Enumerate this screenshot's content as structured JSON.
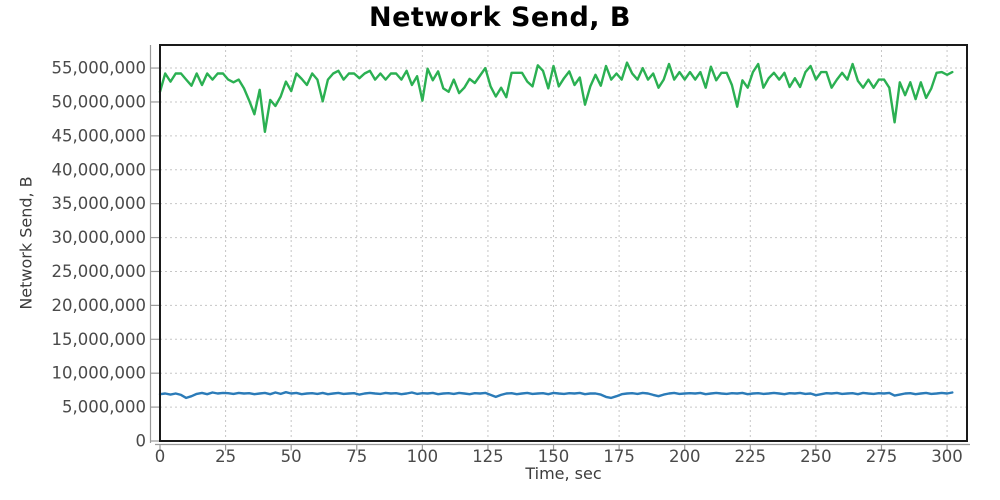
{
  "chart": {
    "title": "Network Send, B",
    "xlabel": "Time, sec",
    "ylabel": "Network Send, B"
  },
  "colors": {
    "series_high": "#2bb052",
    "series_low": "#2b7bb8",
    "grid": "#c6c6c6",
    "plot_border": "#1a1a1a",
    "axis_line": "#9a9a9a",
    "tick_label": "#4a4a4a"
  },
  "chart_data": {
    "type": "line",
    "title": "Network Send, B",
    "xlabel": "Time, sec",
    "ylabel": "Network Send, B",
    "grid": true,
    "legend": "none",
    "xlim": [
      0,
      307.6
    ],
    "ylim": [
      0,
      58400000
    ],
    "x_ticks": [
      0,
      25,
      50,
      75,
      100,
      125,
      150,
      175,
      200,
      225,
      250,
      275,
      300
    ],
    "y_ticks": [
      0,
      5000000,
      10000000,
      15000000,
      20000000,
      25000000,
      30000000,
      35000000,
      40000000,
      45000000,
      50000000,
      55000000
    ],
    "value_scale": 1000000,
    "x": [
      0,
      2,
      4,
      6,
      8,
      10,
      12,
      14,
      16,
      18,
      20,
      22,
      24,
      26,
      28,
      30,
      32,
      34,
      36,
      38,
      40,
      42,
      44,
      46,
      48,
      50,
      52,
      54,
      56,
      58,
      60,
      62,
      64,
      66,
      68,
      70,
      72,
      74,
      76,
      78,
      80,
      82,
      84,
      86,
      88,
      90,
      92,
      94,
      96,
      98,
      100,
      102,
      104,
      106,
      108,
      110,
      112,
      114,
      116,
      118,
      120,
      122,
      124,
      126,
      128,
      130,
      132,
      134,
      136,
      138,
      140,
      142,
      144,
      146,
      148,
      150,
      152,
      154,
      156,
      158,
      160,
      162,
      164,
      166,
      168,
      170,
      172,
      174,
      176,
      178,
      180,
      182,
      184,
      186,
      188,
      190,
      192,
      194,
      196,
      198,
      200,
      202,
      204,
      206,
      208,
      210,
      212,
      214,
      216,
      218,
      220,
      222,
      224,
      226,
      228,
      230,
      232,
      234,
      236,
      238,
      240,
      242,
      244,
      246,
      248,
      250,
      252,
      254,
      256,
      258,
      260,
      262,
      264,
      266,
      268,
      270,
      272,
      274,
      276,
      278,
      280,
      282,
      284,
      286,
      288,
      290,
      292,
      294,
      296,
      298,
      300,
      302
    ],
    "series": [
      {
        "name": "series-high-green",
        "color": "#2bb052",
        "values_millions": [
          51.5,
          54.2,
          53.0,
          54.2,
          54.2,
          53.3,
          52.4,
          54.2,
          52.5,
          54.2,
          53.3,
          54.2,
          54.2,
          53.3,
          52.9,
          53.3,
          52.0,
          50.2,
          48.2,
          51.8,
          45.6,
          50.3,
          49.4,
          50.8,
          53.0,
          51.6,
          54.2,
          53.4,
          52.5,
          54.2,
          53.3,
          50.1,
          53.3,
          54.2,
          54.6,
          53.3,
          54.2,
          54.2,
          53.5,
          54.2,
          54.6,
          53.3,
          54.2,
          53.3,
          54.2,
          54.2,
          53.3,
          54.6,
          52.5,
          53.8,
          50.2,
          54.9,
          53.2,
          54.5,
          52.0,
          51.5,
          53.3,
          51.3,
          52.1,
          53.4,
          52.8,
          53.9,
          55.0,
          52.3,
          50.8,
          52.1,
          50.7,
          54.3,
          54.3,
          54.3,
          53.0,
          52.3,
          55.4,
          54.6,
          52.0,
          55.3,
          52.3,
          53.5,
          54.5,
          52.5,
          53.6,
          49.6,
          52.3,
          54.0,
          52.4,
          55.3,
          53.3,
          54.2,
          53.3,
          55.8,
          54.2,
          53.3,
          55.0,
          53.3,
          54.2,
          52.1,
          53.3,
          55.6,
          53.3,
          54.4,
          53.3,
          54.4,
          53.3,
          54.4,
          52.1,
          55.2,
          53.2,
          54.3,
          54.3,
          52.5,
          49.3,
          53.2,
          52.1,
          54.4,
          55.6,
          52.1,
          53.5,
          54.3,
          53.3,
          54.3,
          52.2,
          53.5,
          52.2,
          54.4,
          55.3,
          53.3,
          54.4,
          54.4,
          52.1,
          53.3,
          54.3,
          53.3,
          55.6,
          53.1,
          52.1,
          53.3,
          52.1,
          53.3,
          53.3,
          52.1,
          47.0,
          52.9,
          51.0,
          52.9,
          50.4,
          52.9,
          50.6,
          52.0,
          54.3,
          54.4,
          54.0,
          54.4
        ]
      },
      {
        "name": "series-low-blue",
        "color": "#2b7bb8",
        "values_millions": [
          6.9,
          7.0,
          6.85,
          7.0,
          6.8,
          6.35,
          6.6,
          6.95,
          7.1,
          6.9,
          7.15,
          7.0,
          7.1,
          7.05,
          6.95,
          7.1,
          7.0,
          7.05,
          6.9,
          7.0,
          7.1,
          6.9,
          7.15,
          6.95,
          7.2,
          7.0,
          7.1,
          6.9,
          7.0,
          7.05,
          6.95,
          7.1,
          6.9,
          7.0,
          7.1,
          6.95,
          7.0,
          7.05,
          6.85,
          7.0,
          7.1,
          7.0,
          6.95,
          7.1,
          7.0,
          7.05,
          6.9,
          7.0,
          7.15,
          6.95,
          7.05,
          7.0,
          7.1,
          6.9,
          7.0,
          7.05,
          6.95,
          7.1,
          7.0,
          6.9,
          7.05,
          7.0,
          7.1,
          6.8,
          6.5,
          6.8,
          7.0,
          7.05,
          6.9,
          7.0,
          7.1,
          6.95,
          7.0,
          7.05,
          6.9,
          7.1,
          7.0,
          6.95,
          7.05,
          7.0,
          7.1,
          6.9,
          7.0,
          7.0,
          6.85,
          6.5,
          6.35,
          6.6,
          6.9,
          7.0,
          7.05,
          6.95,
          7.1,
          7.0,
          6.8,
          6.6,
          6.85,
          7.0,
          7.1,
          6.95,
          7.0,
          7.05,
          7.0,
          7.1,
          6.9,
          7.0,
          7.1,
          7.0,
          6.95,
          7.05,
          7.0,
          7.1,
          6.9,
          7.0,
          7.05,
          6.95,
          7.0,
          7.1,
          7.0,
          6.9,
          7.05,
          7.0,
          7.1,
          6.95,
          7.0,
          6.75,
          6.9,
          7.05,
          7.0,
          7.1,
          6.95,
          7.0,
          7.05,
          6.9,
          7.1,
          7.0,
          6.95,
          7.05,
          7.0,
          7.1,
          6.7,
          6.85,
          7.0,
          7.05,
          6.9,
          7.0,
          7.1,
          6.95,
          7.0,
          7.1,
          7.0,
          7.15
        ]
      }
    ]
  }
}
